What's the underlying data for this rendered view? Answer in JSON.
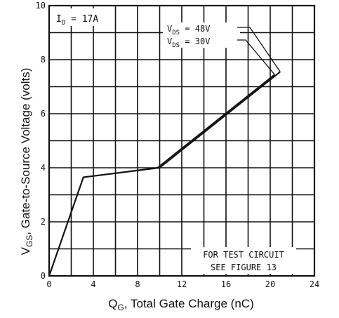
{
  "chart_data": {
    "type": "line",
    "xlabel": "Q_G, Total Gate Charge (nC)",
    "ylabel": "V_GS, Gate-to-Source Voltage (volts)",
    "xlim": [
      0,
      24
    ],
    "ylim": [
      0,
      10
    ],
    "x_ticks": [
      0,
      4,
      8,
      12,
      16,
      20,
      24
    ],
    "y_ticks": [
      0,
      2,
      4,
      6,
      8,
      10
    ],
    "grid": true,
    "series": [
      {
        "name": "V_DS = 48V",
        "x": [
          0,
          3.1,
          10.0,
          20.9
        ],
        "y": [
          0,
          3.65,
          4.0,
          7.55
        ]
      },
      {
        "name": "V_DS = 30V",
        "x": [
          0,
          3.1,
          9.8,
          20.4
        ],
        "y": [
          0,
          3.65,
          4.0,
          7.45
        ]
      }
    ],
    "annotations": {
      "condition": {
        "main": "I",
        "sub": "D",
        "rest": " =  17A"
      },
      "legend_48": {
        "main": "V",
        "sub": "DS",
        "rest": " =  48V"
      },
      "legend_30": {
        "main": "V",
        "sub": "DS",
        "rest": " =  30V"
      },
      "test_line1": "FOR TEST CIRCUIT",
      "test_line2": "SEE FIGURE 13"
    },
    "axis_text": {
      "ylabel_main": "V",
      "ylabel_sub": "GS",
      "ylabel_rest": ", Gate-to-Source Voltage (volts)",
      "xlabel_main": "Q",
      "xlabel_sub": "G",
      "xlabel_rest": ", Total Gate Charge (nC)"
    }
  }
}
